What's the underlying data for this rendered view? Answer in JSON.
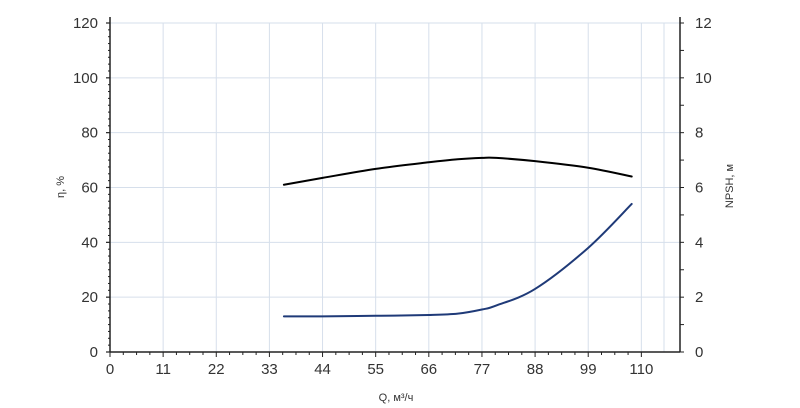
{
  "chart_data": {
    "type": "line",
    "xlabel": "Q, м³/ч",
    "ylabel_left": "η, %",
    "ylabel_right": "NPSH, м",
    "x_ticks": [
      "0",
      "11",
      "22",
      "33",
      "44",
      "55",
      "66",
      "77",
      "88",
      "99",
      "110"
    ],
    "y_left_ticks": [
      "0",
      "20",
      "40",
      "60",
      "80",
      "100",
      "120"
    ],
    "y_right_ticks": [
      "0",
      "2",
      "4",
      "6",
      "8",
      "10",
      "12"
    ],
    "xlim": [
      0,
      118
    ],
    "ylim_left": [
      0,
      120
    ],
    "ylim_right": [
      0,
      12
    ],
    "grid": true,
    "series": [
      {
        "axis": "left",
        "color": "#000000",
        "x": [
          36,
          44,
          55,
          66,
          72,
          77,
          80,
          88,
          99,
          108
        ],
        "y": [
          61,
          63.5,
          66.8,
          69.2,
          70.3,
          70.8,
          70.8,
          69.6,
          67.2,
          64
        ]
      },
      {
        "axis": "right",
        "color": "#1f3a78",
        "x": [
          36,
          44,
          55,
          66,
          72,
          77,
          80,
          88,
          99,
          108
        ],
        "y": [
          1.3,
          1.3,
          1.32,
          1.35,
          1.4,
          1.55,
          1.7,
          2.3,
          3.8,
          5.4
        ]
      }
    ]
  }
}
